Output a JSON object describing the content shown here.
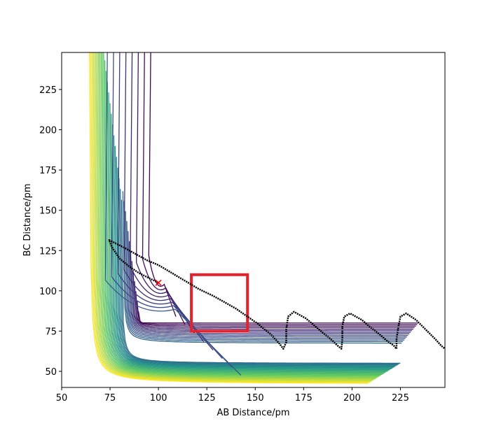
{
  "chart_data": {
    "type": "contour",
    "title": "",
    "xlabel": "AB Distance/pm",
    "ylabel": "BC Distance/pm",
    "xlim": [
      50,
      248
    ],
    "ylim": [
      40,
      248
    ],
    "x_ticks": [
      50,
      75,
      100,
      125,
      150,
      175,
      200,
      225
    ],
    "y_ticks": [
      50,
      75,
      100,
      125,
      150,
      175,
      200,
      225
    ],
    "grid": false,
    "legend": "none",
    "colormap": [
      "#440154",
      "#3b528b",
      "#21918c",
      "#5ec962",
      "#fde725"
    ],
    "surface": {
      "kind": "LEPS-like potential energy surface",
      "transition_state": [
        100,
        105
      ],
      "contour_levels": 40
    },
    "marker": {
      "label": "x",
      "x": 100,
      "y": 105,
      "color": "#ff0000"
    },
    "highlight_box": {
      "x_range": [
        117,
        146
      ],
      "y_range": [
        75,
        110
      ],
      "color": "#e8202a"
    },
    "trajectory": {
      "color": "#000000",
      "points": [
        [
          100,
          105
        ],
        [
          95,
          108
        ],
        [
          90,
          111
        ],
        [
          85,
          115
        ],
        [
          80,
          120
        ],
        [
          76,
          127
        ],
        [
          74.5,
          131.5
        ],
        [
          77,
          130
        ],
        [
          82,
          127
        ],
        [
          88,
          123
        ],
        [
          94,
          119
        ],
        [
          100,
          116
        ],
        [
          107,
          111
        ],
        [
          114,
          106
        ],
        [
          121,
          101
        ],
        [
          128,
          97
        ],
        [
          134,
          93
        ],
        [
          140,
          89
        ],
        [
          146,
          84
        ],
        [
          152,
          79
        ],
        [
          158,
          73
        ],
        [
          162,
          68
        ],
        [
          164.5,
          64
        ],
        [
          166,
          68
        ],
        [
          166,
          76
        ],
        [
          167,
          84
        ],
        [
          170,
          87
        ],
        [
          176,
          83
        ],
        [
          182,
          77
        ],
        [
          188,
          71
        ],
        [
          192.5,
          66
        ],
        [
          194.5,
          64
        ],
        [
          195,
          70
        ],
        [
          195,
          78
        ],
        [
          196,
          84
        ],
        [
          199,
          86
        ],
        [
          205,
          82
        ],
        [
          211,
          76
        ],
        [
          217,
          70
        ],
        [
          221.5,
          66
        ],
        [
          223,
          64
        ],
        [
          223,
          70
        ],
        [
          224,
          78
        ],
        [
          225,
          84
        ],
        [
          228,
          86
        ],
        [
          233,
          82
        ],
        [
          238,
          76
        ],
        [
          243,
          70
        ],
        [
          246,
          66
        ],
        [
          248,
          64
        ]
      ]
    }
  }
}
